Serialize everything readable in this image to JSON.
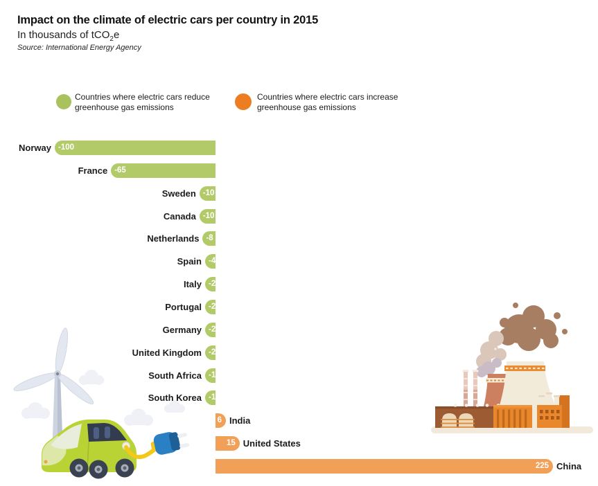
{
  "header": {
    "title": "Impact on the climate of electric cars per country in 2015",
    "subtitle_prefix": "In thousands of tCO",
    "subtitle_sub": "2",
    "subtitle_suffix": "e",
    "source": "Source: International Energy Agency"
  },
  "legend": {
    "items": [
      {
        "name": "reduce",
        "color": "#a9c25e",
        "line1": "Countries where electric cars reduce",
        "line2": "greenhouse gas emissions"
      },
      {
        "name": "increase",
        "color": "#ec7d21",
        "line1": "Countries where electric cars increase",
        "line2": "greenhouse gas emissions"
      }
    ]
  },
  "chart_data": {
    "type": "bar",
    "orientation": "horizontal-diverging",
    "title": "Impact on the climate of electric cars per country in 2015",
    "unit": "thousands of tCO2e",
    "source": "International Energy Agency",
    "xlim": [
      -100,
      225
    ],
    "grid": false,
    "categories": [
      "Norway",
      "France",
      "Sweden",
      "Canada",
      "Netherlands",
      "Spain",
      "Italy",
      "Portugal",
      "Germany",
      "United Kingdom",
      "South Africa",
      "South Korea",
      "India",
      "United States",
      "China"
    ],
    "values": [
      -100,
      -65,
      -10,
      -10,
      -8,
      -4,
      -2,
      -2,
      -2,
      -2,
      -1,
      -1,
      6,
      15,
      225
    ],
    "series": [
      {
        "name": "reduce",
        "label": "Countries where electric cars reduce greenhouse gas emissions",
        "color": "#b3ca69",
        "rows": [
          {
            "country": "Norway",
            "value": -100
          },
          {
            "country": "France",
            "value": -65
          },
          {
            "country": "Sweden",
            "value": -10
          },
          {
            "country": "Canada",
            "value": -10
          },
          {
            "country": "Netherlands",
            "value": -8
          },
          {
            "country": "Spain",
            "value": -4
          },
          {
            "country": "Italy",
            "value": -2
          },
          {
            "country": "Portugal",
            "value": -2
          },
          {
            "country": "Germany",
            "value": -2
          },
          {
            "country": "United Kingdom",
            "value": -2
          },
          {
            "country": "South Africa",
            "value": -1
          },
          {
            "country": "South Korea",
            "value": -1
          }
        ]
      },
      {
        "name": "increase",
        "label": "Countries where electric cars increase greenhouse gas emissions",
        "color": "#f2a057",
        "rows": [
          {
            "country": "India",
            "value": 6
          },
          {
            "country": "United States",
            "value": 15
          },
          {
            "country": "China",
            "value": 225
          }
        ]
      }
    ]
  },
  "illustrations": {
    "left": "wind-turbine-and-electric-car-with-charging-plug",
    "right": "polluting-factory-with-smoke"
  }
}
